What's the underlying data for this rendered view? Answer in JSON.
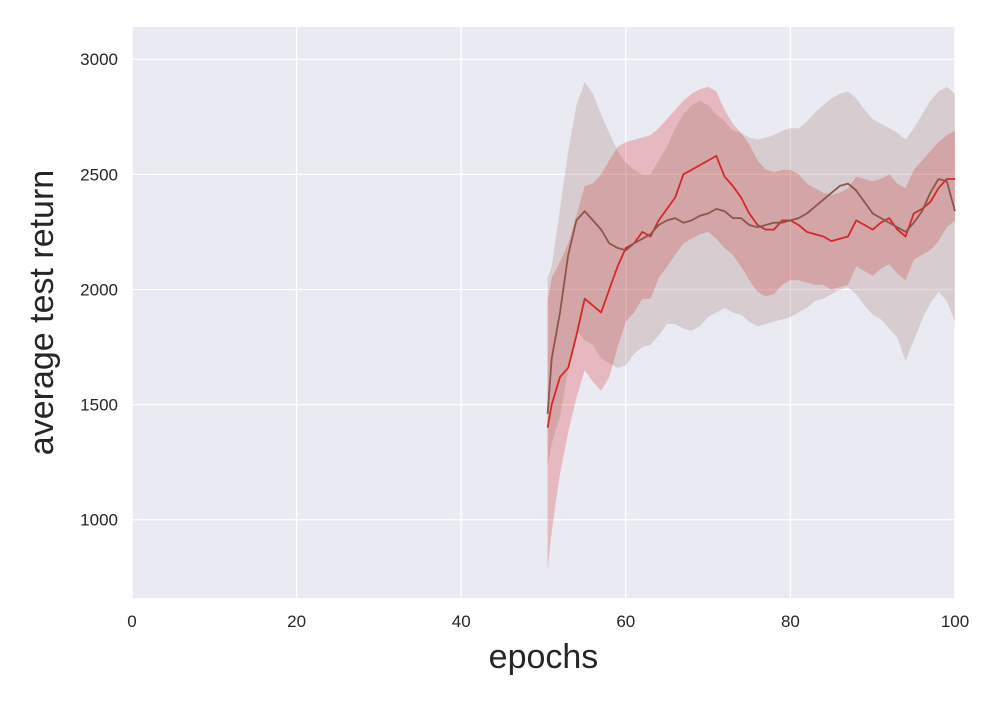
{
  "chart_data": {
    "type": "line",
    "title": "",
    "xlabel": "epochs",
    "ylabel": "average test return",
    "xlim": [
      0,
      100
    ],
    "ylim": [
      660,
      3140
    ],
    "xticks": [
      0,
      20,
      40,
      60,
      80,
      100
    ],
    "yticks": [
      1000,
      1500,
      2000,
      2500,
      3000
    ],
    "grid": true,
    "style": "seaborn-darkgrid",
    "colors": {
      "background": "#eaeaf2",
      "grid": "#ffffff"
    },
    "series": [
      {
        "color": "#d62728",
        "band_opacity": 0.25,
        "x": [
          50.5,
          51,
          52,
          53,
          54,
          55,
          56,
          57,
          58,
          59,
          60,
          61,
          62,
          63,
          64,
          65,
          66,
          67,
          68,
          69,
          70,
          71,
          72,
          73,
          74,
          75,
          76,
          77,
          78,
          79,
          80,
          81,
          82,
          83,
          84,
          85,
          86,
          87,
          88,
          89,
          90,
          91,
          92,
          93,
          94,
          95,
          96,
          97,
          98,
          99,
          100
        ],
        "values": [
          1400,
          1500,
          1620,
          1660,
          1800,
          1960,
          1930,
          1900,
          2000,
          2100,
          2180,
          2200,
          2250,
          2230,
          2300,
          2350,
          2400,
          2500,
          2520,
          2540,
          2560,
          2580,
          2490,
          2450,
          2400,
          2330,
          2280,
          2260,
          2260,
          2300,
          2300,
          2280,
          2250,
          2240,
          2230,
          2210,
          2220,
          2230,
          2300,
          2280,
          2260,
          2290,
          2310,
          2260,
          2230,
          2330,
          2350,
          2380,
          2440,
          2480,
          2480
        ],
        "upper": [
          1950,
          2050,
          2120,
          2200,
          2320,
          2450,
          2460,
          2500,
          2560,
          2620,
          2640,
          2650,
          2660,
          2670,
          2700,
          2740,
          2780,
          2820,
          2850,
          2870,
          2880,
          2860,
          2780,
          2720,
          2680,
          2630,
          2560,
          2520,
          2510,
          2520,
          2520,
          2500,
          2460,
          2440,
          2420,
          2410,
          2420,
          2440,
          2490,
          2480,
          2470,
          2480,
          2500,
          2460,
          2440,
          2520,
          2560,
          2600,
          2640,
          2670,
          2690
        ],
        "lower": [
          780,
          950,
          1200,
          1380,
          1530,
          1650,
          1600,
          1560,
          1620,
          1750,
          1860,
          1900,
          1960,
          1960,
          2050,
          2100,
          2150,
          2200,
          2220,
          2240,
          2250,
          2220,
          2180,
          2150,
          2100,
          2040,
          1990,
          1970,
          1980,
          2020,
          2040,
          2040,
          2030,
          2020,
          2020,
          2000,
          2010,
          2020,
          2100,
          2080,
          2060,
          2090,
          2110,
          2070,
          2040,
          2130,
          2150,
          2170,
          2210,
          2270,
          2300
        ]
      },
      {
        "color": "#8c564b",
        "band_opacity": 0.2,
        "x": [
          50.5,
          51,
          52,
          53,
          54,
          55,
          56,
          57,
          58,
          59,
          60,
          61,
          62,
          63,
          64,
          65,
          66,
          67,
          68,
          69,
          70,
          71,
          72,
          73,
          74,
          75,
          76,
          77,
          78,
          79,
          80,
          81,
          82,
          83,
          84,
          85,
          86,
          87,
          88,
          89,
          90,
          91,
          92,
          93,
          94,
          95,
          96,
          97,
          98,
          99,
          100
        ],
        "values": [
          1460,
          1700,
          1900,
          2150,
          2300,
          2340,
          2300,
          2260,
          2200,
          2180,
          2170,
          2200,
          2220,
          2240,
          2280,
          2300,
          2310,
          2290,
          2300,
          2320,
          2330,
          2350,
          2340,
          2310,
          2310,
          2280,
          2270,
          2280,
          2290,
          2290,
          2300,
          2310,
          2330,
          2360,
          2390,
          2420,
          2450,
          2460,
          2430,
          2380,
          2330,
          2310,
          2290,
          2270,
          2250,
          2290,
          2340,
          2420,
          2480,
          2470,
          2340
        ],
        "upper": [
          2050,
          2100,
          2350,
          2600,
          2800,
          2900,
          2850,
          2760,
          2680,
          2600,
          2550,
          2520,
          2500,
          2500,
          2560,
          2620,
          2700,
          2760,
          2800,
          2820,
          2800,
          2760,
          2730,
          2690,
          2680,
          2660,
          2650,
          2660,
          2670,
          2690,
          2700,
          2700,
          2730,
          2770,
          2800,
          2830,
          2850,
          2860,
          2830,
          2780,
          2740,
          2720,
          2700,
          2680,
          2650,
          2700,
          2760,
          2820,
          2860,
          2880,
          2850
        ],
        "lower": [
          1230,
          1330,
          1450,
          1650,
          1820,
          1780,
          1760,
          1700,
          1680,
          1660,
          1670,
          1720,
          1750,
          1760,
          1800,
          1850,
          1850,
          1830,
          1820,
          1840,
          1880,
          1900,
          1920,
          1900,
          1890,
          1860,
          1840,
          1850,
          1860,
          1870,
          1880,
          1900,
          1920,
          1950,
          1960,
          1980,
          2000,
          2010,
          1980,
          1930,
          1890,
          1870,
          1830,
          1790,
          1690,
          1780,
          1870,
          1940,
          1990,
          1950,
          1860
        ]
      }
    ]
  }
}
